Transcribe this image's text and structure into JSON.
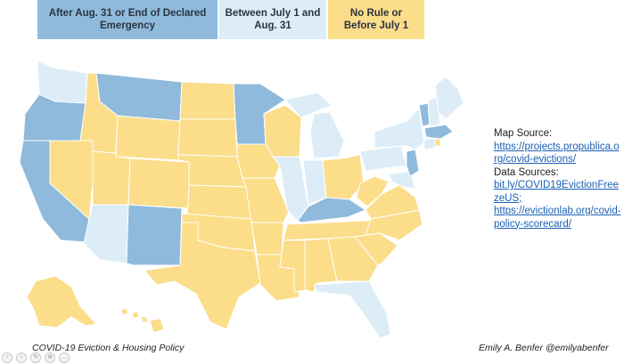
{
  "legend": {
    "high": "After Aug. 31 or End of Declared Emergency",
    "mid": "Between July 1 and Aug. 31",
    "low": "No Rule or Before July 1"
  },
  "colors": {
    "high": "#8fbadb",
    "mid": "#dcedf7",
    "low": "#fbdd8a"
  },
  "sources": {
    "map_label": "Map Source:",
    "map_link": "https://projects.propublica.org/covid-evictions/",
    "data_label": "Data Sources:",
    "data_link_1": "bit.ly/COVID19EvictionFreezeUS;",
    "data_link_2": "https://evictionlab.org/covid-policy-scorecard/"
  },
  "footer": {
    "left": "COVID-19 Eviction & Housing Policy",
    "right": "Emily A. Benfer @emilyabenfer"
  },
  "toolbar": {
    "icons": [
      "previous-icon",
      "next-icon",
      "pen-icon",
      "zoom-icon",
      "more-icon"
    ]
  }
}
